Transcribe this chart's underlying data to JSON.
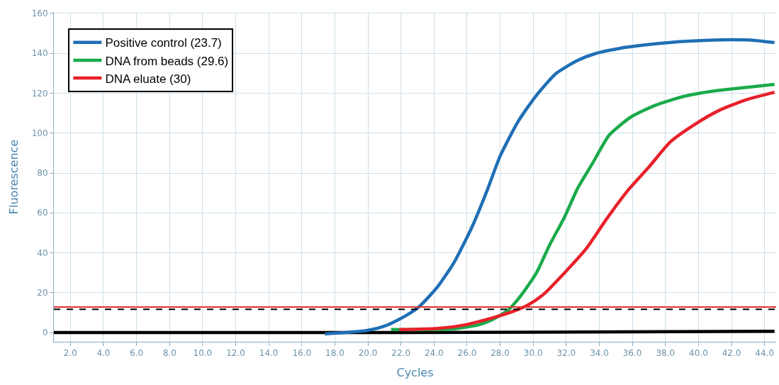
{
  "chart_data": {
    "type": "line",
    "xlabel": "Cycles",
    "ylabel": "Fluorescence",
    "xlim": [
      1,
      44.7
    ],
    "ylim": [
      -4.6,
      160.7
    ],
    "xticks": [
      {
        "value": 2,
        "label": "2.0"
      },
      {
        "value": 4,
        "label": "4.0"
      },
      {
        "value": 6,
        "label": "6.0"
      },
      {
        "value": 8,
        "label": "8.0"
      },
      {
        "value": 10,
        "label": "10.0"
      },
      {
        "value": 12,
        "label": "12.0"
      },
      {
        "value": 14,
        "label": "14.0"
      },
      {
        "value": 16,
        "label": "16.0"
      },
      {
        "value": 18,
        "label": "18.0"
      },
      {
        "value": 20,
        "label": "20.0"
      },
      {
        "value": 22,
        "label": "22.0"
      },
      {
        "value": 24,
        "label": "24.0"
      },
      {
        "value": 26,
        "label": "26.0"
      },
      {
        "value": 28,
        "label": "28.0"
      },
      {
        "value": 30,
        "label": "30.0"
      },
      {
        "value": 32,
        "label": "32.0"
      },
      {
        "value": 34,
        "label": "34.0"
      },
      {
        "value": 36,
        "label": "36.0"
      },
      {
        "value": 38,
        "label": "38.0"
      },
      {
        "value": 40,
        "label": "40.0"
      },
      {
        "value": 42,
        "label": "42.0"
      },
      {
        "value": 44,
        "label": "44.0"
      }
    ],
    "yticks": [
      0,
      20,
      40,
      60,
      80,
      100,
      120,
      140,
      160
    ],
    "grid": true,
    "legend": "top left",
    "marker": "none",
    "line_style": "solid",
    "ref_lines": [
      {
        "axis": "y",
        "value": 12.8,
        "color": "#e03030",
        "line_style": "solid"
      },
      {
        "axis": "y",
        "value": 11.7,
        "color": "#000000",
        "line_style": "dashed"
      }
    ],
    "series": [
      {
        "color": "#000000",
        "x": [
          1,
          22,
          44.6
        ],
        "values": [
          0,
          0,
          0.6
        ]
      },
      {
        "name": "Positive control (23.7)",
        "color": "#1f6fb5",
        "x": [
          17.4,
          19.9,
          21.1,
          22.3,
          23.1,
          24.2,
          25.2,
          26.3,
          27.2,
          28.0,
          29.1,
          30.2,
          31.4,
          32.7,
          33.8,
          35.3,
          37.0,
          38.7,
          40.4,
          42.1,
          43.4,
          44.6
        ],
        "values": [
          -0.7,
          1,
          3.5,
          8.5,
          13,
          22.8,
          35,
          53,
          71,
          88.5,
          106,
          119,
          130,
          136.5,
          140,
          142.6,
          144.4,
          145.8,
          146.5,
          146.8,
          146.5,
          145.4
        ]
      },
      {
        "name": "DNA from beads (29.6)",
        "color": "#1aaa4a",
        "x": [
          21.4,
          25.0,
          26.7,
          27.6,
          28.5,
          29.3,
          30.2,
          31.0,
          31.9,
          32.7,
          33.6,
          34.6,
          35.9,
          37.4,
          39.1,
          40.8,
          42.6,
          44.6
        ],
        "values": [
          1.5,
          1.8,
          3.9,
          6.8,
          11.4,
          19,
          30,
          44,
          58,
          72.5,
          85,
          99,
          108,
          114,
          118.4,
          121,
          122.7,
          124.4
        ]
      },
      {
        "name": "DNA eluate (30)",
        "color": "#e8202a",
        "x": [
          21.9,
          24.2,
          25.9,
          27.6,
          28.9,
          29.7,
          30.6,
          31.9,
          33.2,
          34.4,
          35.7,
          37.0,
          38.3,
          39.8,
          41.3,
          43.0,
          44.6
        ],
        "values": [
          1.5,
          2.1,
          3.9,
          7.5,
          11,
          13.9,
          19,
          30,
          42,
          56.5,
          71,
          83,
          95.6,
          104.5,
          111.6,
          117,
          120.5
        ]
      }
    ]
  }
}
